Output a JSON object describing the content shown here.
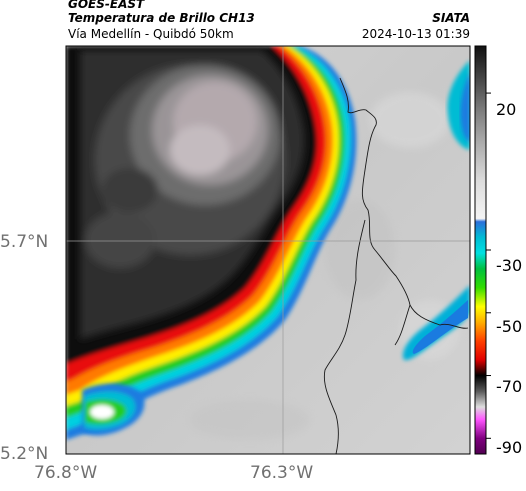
{
  "header": {
    "satellite": "GOES-EAST",
    "product": "Temperatura de Brillo CH13",
    "region": "Vía Medellín - Quibdó 50km",
    "organization": "SIATA",
    "timestamp": "2024-10-13 01:39"
  },
  "map": {
    "lat_ticks": [
      "5.7°N",
      "5.2°N"
    ],
    "lon_ticks": [
      "76.8°W",
      "76.3°W"
    ],
    "gridlines": true
  },
  "colorbar": {
    "ticks": [
      "20",
      "-30",
      "-50",
      "-70",
      "-90"
    ],
    "tick_values": [
      20,
      -30,
      -50,
      -70,
      -90
    ],
    "range": [
      -95,
      35
    ],
    "stops": [
      {
        "v": 35,
        "color": "#111111"
      },
      {
        "v": 25,
        "color": "#444444"
      },
      {
        "v": 15,
        "color": "#7a7a7a"
      },
      {
        "v": 5,
        "color": "#a8a8a8"
      },
      {
        "v": -8,
        "color": "#dcdcdc"
      },
      {
        "v": -20,
        "color": "#f4f4f4"
      },
      {
        "v": -21,
        "color": "#2a6fdb"
      },
      {
        "v": -26,
        "color": "#00bcd4"
      },
      {
        "v": -31,
        "color": "#00e0e0"
      },
      {
        "v": -36,
        "color": "#00c040"
      },
      {
        "v": -42,
        "color": "#33dd00"
      },
      {
        "v": -48,
        "color": "#ffff00"
      },
      {
        "v": -53,
        "color": "#ffb000"
      },
      {
        "v": -59,
        "color": "#ff4000"
      },
      {
        "v": -65,
        "color": "#e00000"
      },
      {
        "v": -70,
        "color": "#000000"
      },
      {
        "v": -75,
        "color": "#5a5a5a"
      },
      {
        "v": -80,
        "color": "#dddddd"
      },
      {
        "v": -84,
        "color": "#ff55ff"
      },
      {
        "v": -90,
        "color": "#800080"
      },
      {
        "v": -95,
        "color": "#500050"
      }
    ]
  },
  "colors": {
    "cloud_core_light": "#b4a9ad",
    "cloud_dark": "#2c2c2c",
    "clear_sky": "#cfcfcf",
    "ring_red": "#e81010",
    "ring_green": "#22cc22",
    "ring_blue": "#1a7be0",
    "ocean_black": "#0a0a0a"
  }
}
